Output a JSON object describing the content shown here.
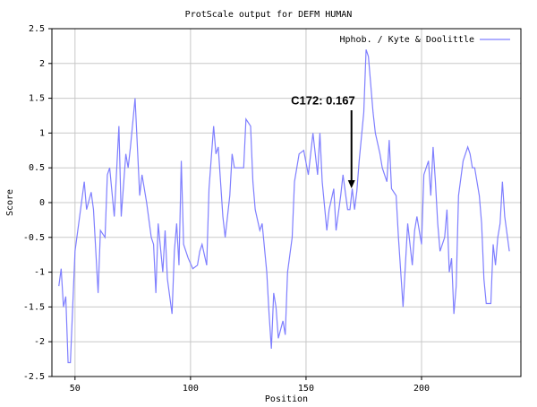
{
  "chart_data": {
    "type": "line",
    "title": "ProtScale output for DEFM HUMAN",
    "x_label": "Position",
    "y_label": "Score",
    "xlim": [
      40,
      243
    ],
    "xticks": [
      50,
      100,
      150,
      200
    ],
    "ylim": [
      -2.5,
      2.5
    ],
    "yticks": [
      -2.5,
      -2,
      -1.5,
      -1,
      -0.5,
      0,
      0.5,
      1,
      1.5,
      2,
      2.5
    ],
    "grid": true,
    "legend": "top-right",
    "x": [
      43,
      44,
      45,
      46,
      47,
      48,
      50,
      52,
      54,
      55,
      57,
      58,
      60,
      61,
      63,
      64,
      65,
      67,
      69,
      70,
      72,
      73,
      74,
      76,
      78,
      79,
      81,
      83,
      84,
      85,
      86,
      88,
      89,
      90,
      92,
      93,
      94,
      95,
      96,
      97,
      99,
      101,
      103,
      104,
      105,
      107,
      108,
      110,
      111,
      112,
      114,
      115,
      117,
      118,
      119,
      121,
      123,
      124,
      126,
      127,
      128,
      130,
      131,
      133,
      134,
      135,
      136,
      137,
      138,
      140,
      141,
      142,
      144,
      145,
      147,
      149,
      151,
      152,
      153,
      155,
      156,
      157,
      159,
      160,
      162,
      163,
      165,
      166,
      168,
      169,
      170,
      171,
      172,
      173,
      175,
      176,
      177,
      179,
      180,
      182,
      183,
      185,
      186,
      187,
      189,
      190,
      192,
      194,
      196,
      197,
      198,
      200,
      201,
      203,
      204,
      205,
      206,
      207,
      208,
      210,
      211,
      212,
      213,
      214,
      215,
      216,
      218,
      220,
      221,
      222,
      223,
      225,
      226,
      227,
      228,
      230,
      231,
      232,
      233,
      234,
      235,
      236,
      238
    ],
    "series": [
      {
        "name": "Hphob. / Kyte & Doolittle",
        "color": "#7f7fff",
        "values": [
          -1.2,
          -0.95,
          -1.5,
          -1.35,
          -2.3,
          -2.3,
          -0.7,
          -0.2,
          0.3,
          -0.1,
          0.15,
          -0.1,
          -1.3,
          -0.4,
          -0.5,
          0.4,
          0.5,
          -0.2,
          1.1,
          -0.2,
          0.7,
          0.5,
          0.8,
          1.5,
          0.1,
          0.4,
          0,
          -0.5,
          -0.6,
          -1.3,
          -0.3,
          -1.0,
          -0.4,
          -1.1,
          -1.6,
          -0.7,
          -0.3,
          -0.9,
          0.6,
          -0.6,
          -0.8,
          -0.95,
          -0.9,
          -0.7,
          -0.6,
          -0.9,
          0.2,
          1.1,
          0.7,
          0.8,
          -0.2,
          -0.5,
          0.1,
          0.7,
          0.5,
          0.5,
          0.5,
          1.2,
          1.1,
          0.3,
          -0.1,
          -0.4,
          -0.3,
          -1.0,
          -1.6,
          -2.1,
          -1.3,
          -1.5,
          -1.95,
          -1.7,
          -1.9,
          -1.0,
          -0.5,
          0.3,
          0.7,
          0.75,
          0.4,
          0.7,
          1.0,
          0.4,
          1.0,
          0.3,
          -0.4,
          -0.1,
          0.2,
          -0.4,
          0.1,
          0.4,
          -0.1,
          -0.1,
          0.2,
          -0.1,
          0.167,
          0.6,
          1.3,
          2.2,
          2.1,
          1.3,
          1.0,
          0.7,
          0.5,
          0.3,
          0.9,
          0.2,
          0.1,
          -0.5,
          -1.5,
          -0.3,
          -0.9,
          -0.4,
          -0.2,
          -0.6,
          0.4,
          0.6,
          0.1,
          0.8,
          0.3,
          -0.3,
          -0.7,
          -0.5,
          -0.1,
          -1.0,
          -0.8,
          -1.6,
          -1.2,
          0.1,
          0.6,
          0.8,
          0.7,
          0.5,
          0.5,
          0.1,
          -0.3,
          -1.1,
          -1.45,
          -1.45,
          -0.6,
          -0.9,
          -0.5,
          -0.3,
          0.3,
          -0.2,
          -0.7
        ]
      }
    ],
    "annotations": [
      {
        "text": "C172: 0.167",
        "x": 172,
        "y": 0.167
      }
    ]
  }
}
